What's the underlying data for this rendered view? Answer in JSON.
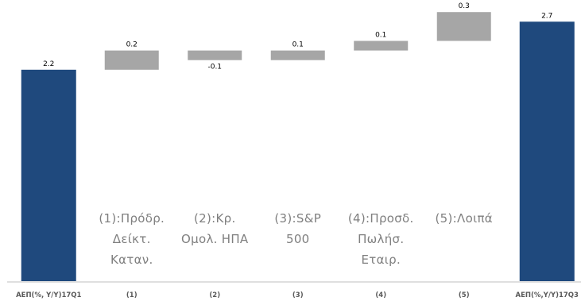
{
  "chart_data": {
    "type": "waterfall",
    "title": "",
    "xlabel": "",
    "ylabel": "",
    "categories": [
      "ΑΕΠ(%, Υ/Υ)17Q1",
      "(1)",
      "(2)",
      "(3)",
      "(4)",
      "(5)",
      "ΑΕΠ(%,Υ/Υ)17Q3"
    ],
    "values": [
      2.2,
      0.2,
      -0.1,
      0.1,
      0.1,
      0.3,
      2.7
    ],
    "data_labels": [
      "2.2",
      "0.2",
      "-0.1",
      "0.1",
      "0.1",
      "0.3",
      "2.7"
    ],
    "kinds": [
      "total",
      "delta",
      "delta",
      "delta",
      "delta",
      "delta",
      "total"
    ],
    "colors": {
      "total": "#1f497d",
      "delta": "#a6a6a6",
      "text": "#000000",
      "legend": "#7f7f7f",
      "axis": "#bfbfbf"
    },
    "annotations": [
      {
        "category": "(1)",
        "lines": [
          "(1):Πρόδρ.",
          "Δείκτ.",
          "Καταν."
        ]
      },
      {
        "category": "(2)",
        "lines": [
          "(2):Κρ.",
          "Ομολ. ΗΠΑ"
        ]
      },
      {
        "category": "(3)",
        "lines": [
          "(3):S&P",
          "500"
        ]
      },
      {
        "category": "(4)",
        "lines": [
          "(4):Προσδ.",
          "Πωλήσ.",
          "Εταιρ."
        ]
      },
      {
        "category": "(5)",
        "lines": [
          "(5):Λοιπά"
        ]
      }
    ],
    "grid": false
  }
}
